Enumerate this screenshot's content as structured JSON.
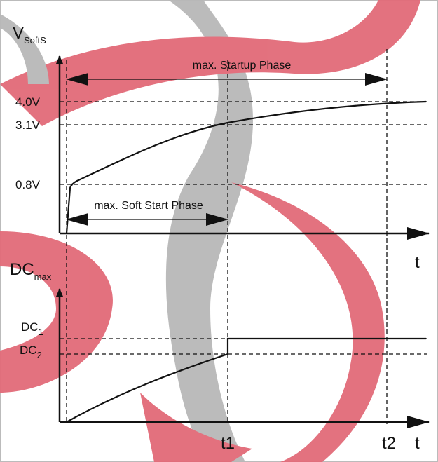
{
  "top_plot": {
    "y_label": "V",
    "y_label_sub": "SoftS",
    "x_label": "t",
    "levels": [
      "4.0V",
      "3.1V",
      "0.8V"
    ]
  },
  "bottom_plot": {
    "y_label": "DC",
    "y_label_sub": "max",
    "x_label": "t",
    "levels": [
      {
        "label": "DC",
        "sub": "1"
      },
      {
        "label": "DC",
        "sub": "2"
      }
    ],
    "time_marks": [
      "t1",
      "t2"
    ]
  },
  "annotations": {
    "startup": "max. Startup Phase",
    "soft_start": "max. Soft Start Phase"
  }
}
